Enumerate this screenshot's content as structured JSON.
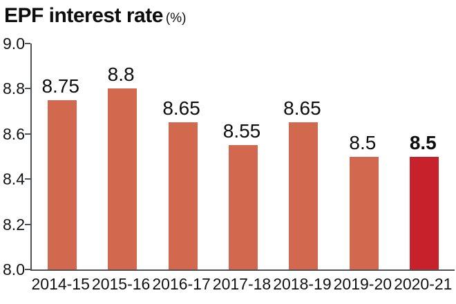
{
  "title": {
    "text": "EPF interest rate",
    "unit": "(%)"
  },
  "chart_data": {
    "type": "bar",
    "title": "EPF interest rate",
    "unit_label": "(%)",
    "categories": [
      "2014-15",
      "2015-16",
      "2016-17",
      "2017-18",
      "2018-19",
      "2019-20",
      "2020-21"
    ],
    "values": [
      8.75,
      8.8,
      8.65,
      8.55,
      8.65,
      8.5,
      8.5
    ],
    "value_labels": [
      "8.75",
      "8.8",
      "8.65",
      "8.55",
      "8.65",
      "8.5",
      "8.5"
    ],
    "ylim": [
      8.0,
      9.0
    ],
    "ytick_values": [
      9.0,
      8.8,
      8.6,
      8.4,
      8.2,
      8.0
    ],
    "ytick_labels": [
      "9.0",
      "8.8",
      "8.6",
      "8.4",
      "8.2",
      "8.0"
    ],
    "xlabel": "",
    "ylabel": "",
    "grid": false,
    "legend": "none",
    "bar_color": "#d2694e",
    "highlight_color": "#c7222b",
    "highlight_index": 6,
    "axis_color": "#4f5254",
    "text_color": "#0d0d0d"
  }
}
